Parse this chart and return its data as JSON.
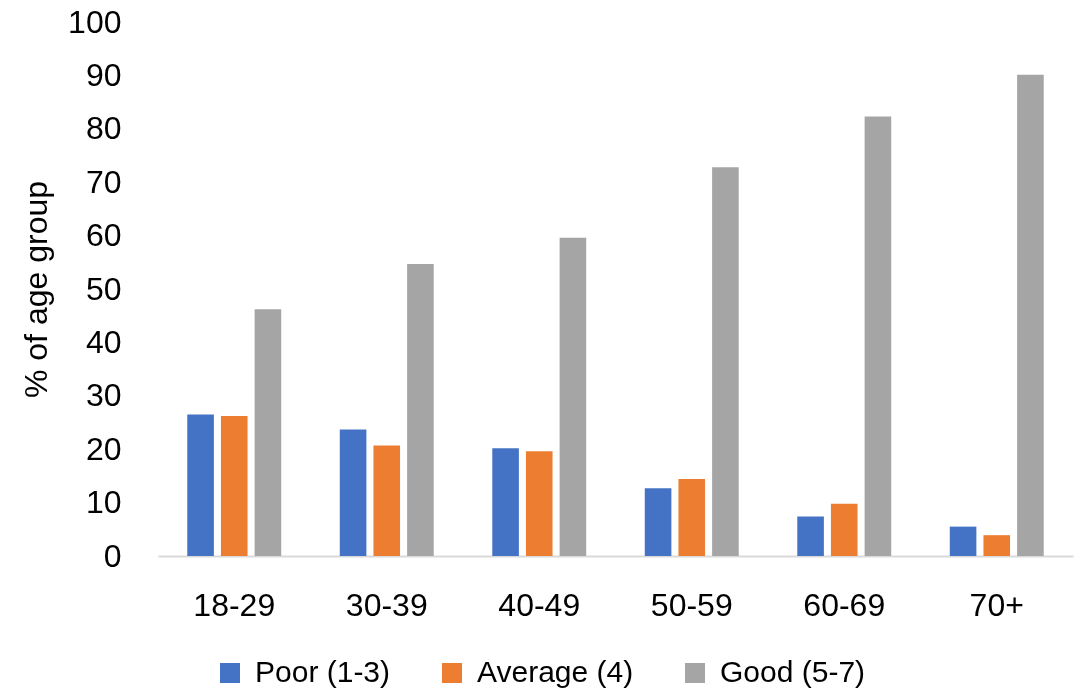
{
  "chart_data": {
    "type": "bar",
    "ylabel": "% of age group",
    "categories": [
      "18-29",
      "30-39",
      "40-49",
      "50-59",
      "60-69",
      "70+"
    ],
    "series": [
      {
        "name": "Poor (1-3)",
        "color": "#4472c4",
        "values": [
          26.5,
          23.7,
          20.2,
          12.7,
          7.4,
          5.5
        ]
      },
      {
        "name": "Average (4)",
        "color": "#ed7d31",
        "values": [
          26.2,
          20.7,
          19.6,
          14.4,
          9.8,
          3.9
        ]
      },
      {
        "name": "Good (5-7)",
        "color": "#a5a5a5",
        "values": [
          46.2,
          54.7,
          59.6,
          72.8,
          82.3,
          90.1
        ]
      }
    ],
    "ylim": [
      0,
      100
    ],
    "yticks": [
      0,
      10,
      20,
      30,
      40,
      50,
      60,
      70,
      80,
      90,
      100
    ],
    "grid": false,
    "legend": "bottom"
  }
}
